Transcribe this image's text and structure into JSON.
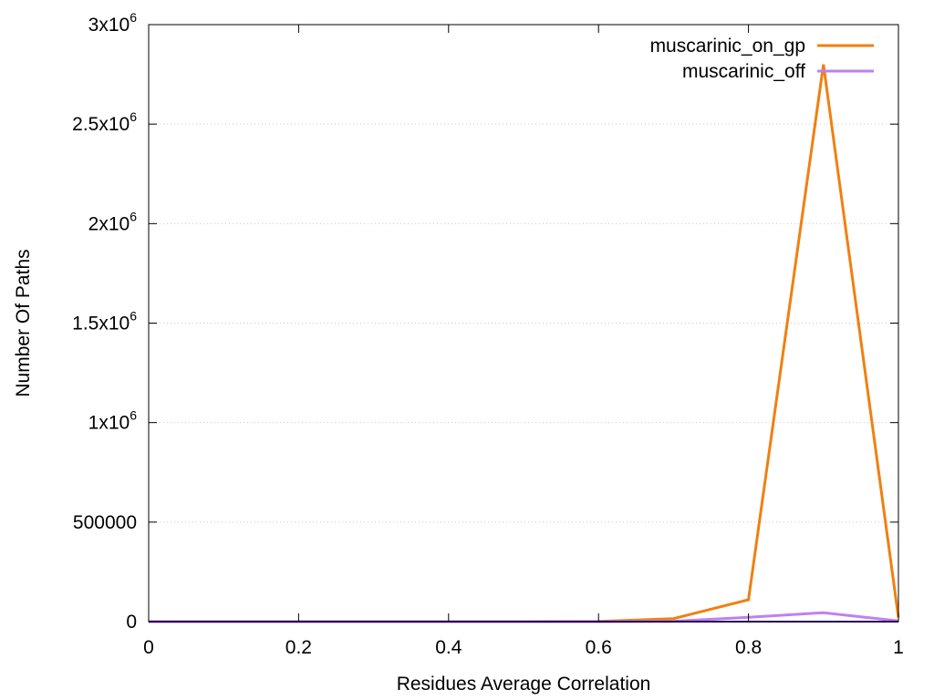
{
  "chart_data": {
    "type": "line",
    "xlabel": "Residues Average Correlation",
    "ylabel": "Number Of Paths",
    "xlim": [
      0,
      1
    ],
    "ylim": [
      0,
      3000000
    ],
    "grid": "horizontal dotted",
    "legend_position": "top-right",
    "x_ticks": [
      {
        "value": 0,
        "label": "0"
      },
      {
        "value": 0.2,
        "label": "0.2"
      },
      {
        "value": 0.4,
        "label": "0.4"
      },
      {
        "value": 0.6,
        "label": "0.6"
      },
      {
        "value": 0.8,
        "label": "0.8"
      },
      {
        "value": 1,
        "label": "1"
      }
    ],
    "y_ticks": [
      {
        "value": 0,
        "base": "0",
        "exp": ""
      },
      {
        "value": 500000,
        "base": "500000",
        "exp": ""
      },
      {
        "value": 1000000,
        "base": "1x10",
        "exp": "6"
      },
      {
        "value": 1500000,
        "base": "1.5x10",
        "exp": "6"
      },
      {
        "value": 2000000,
        "base": "2x10",
        "exp": "6"
      },
      {
        "value": 2500000,
        "base": "2.5x10",
        "exp": "6"
      },
      {
        "value": 3000000,
        "base": "3x10",
        "exp": "6"
      }
    ],
    "series": [
      {
        "name": "muscarinic_on_gp",
        "color": "#f08010",
        "points": [
          [
            0,
            0
          ],
          [
            0.1,
            0
          ],
          [
            0.2,
            0
          ],
          [
            0.3,
            0
          ],
          [
            0.4,
            0
          ],
          [
            0.5,
            0
          ],
          [
            0.6,
            1000
          ],
          [
            0.7,
            15000
          ],
          [
            0.8,
            110000
          ],
          [
            0.9,
            2800000
          ],
          [
            1.0,
            20000
          ]
        ]
      },
      {
        "name": "muscarinic_off",
        "color": "#c080f0",
        "points": [
          [
            0,
            0
          ],
          [
            0.1,
            0
          ],
          [
            0.2,
            0
          ],
          [
            0.3,
            0
          ],
          [
            0.4,
            0
          ],
          [
            0.5,
            0
          ],
          [
            0.6,
            0
          ],
          [
            0.7,
            2000
          ],
          [
            0.8,
            22000
          ],
          [
            0.9,
            45000
          ],
          [
            1.0,
            3000
          ]
        ]
      }
    ],
    "baseline_color": "#5000a0"
  }
}
